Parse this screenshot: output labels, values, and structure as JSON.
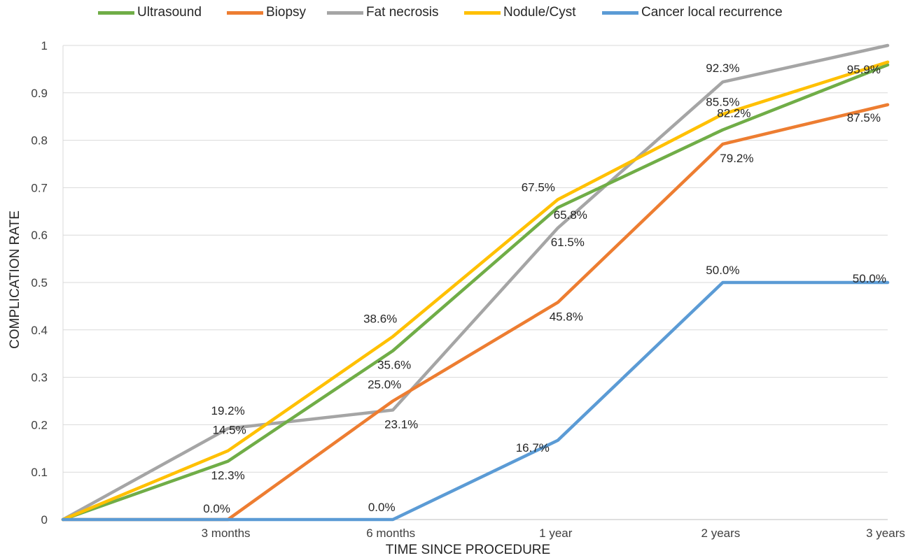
{
  "chart_data": {
    "type": "line",
    "xlabel": "TIME SINCE PROCEDURE",
    "ylabel": "COMPLICATION RATE",
    "categories": [
      "",
      "3 months",
      "6 months",
      "1 year",
      "2 years",
      "3 years"
    ],
    "ylim": [
      0,
      1
    ],
    "yticks": [
      "0",
      "0.1",
      "0.2",
      "0.3",
      "0.4",
      "0.5",
      "0.6",
      "0.7",
      "0.8",
      "0.9",
      "1"
    ],
    "grid": true,
    "legend": "top",
    "series": [
      {
        "name": "Ultrasound",
        "color": "#70AD47",
        "values": [
          0,
          0.123,
          0.356,
          0.658,
          0.822,
          0.959
        ],
        "labels": [
          "",
          "12.3%",
          "35.6%",
          "65.8%",
          "82.2%",
          "95.9%"
        ]
      },
      {
        "name": "Biopsy",
        "color": "#ED7D31",
        "values": [
          0,
          0,
          0.25,
          0.458,
          0.792,
          0.875
        ],
        "labels": [
          "",
          "0.0%",
          "25.0%",
          "45.8%",
          "79.2%",
          "87.5%"
        ]
      },
      {
        "name": "Fat necrosis",
        "color": "#A5A5A5",
        "values": [
          0,
          0.192,
          0.231,
          0.615,
          0.923,
          1.0
        ],
        "labels": [
          "",
          "19.2%",
          "23.1%",
          "61.5%",
          "92.3%",
          ""
        ]
      },
      {
        "name": "Nodule/Cyst",
        "color": "#FFC000",
        "values": [
          0,
          0.145,
          0.386,
          0.675,
          0.855,
          0.965
        ],
        "labels": [
          "",
          "14.5%",
          "38.6%",
          "67.5%",
          "85.5%",
          ""
        ]
      },
      {
        "name": "Cancer local recurrence",
        "color": "#5B9BD5",
        "values": [
          0,
          0,
          0,
          0.167,
          0.5,
          0.5
        ],
        "labels": [
          "",
          "",
          "0.0%",
          "16.7%",
          "50.0%",
          "50.0%"
        ]
      }
    ]
  }
}
